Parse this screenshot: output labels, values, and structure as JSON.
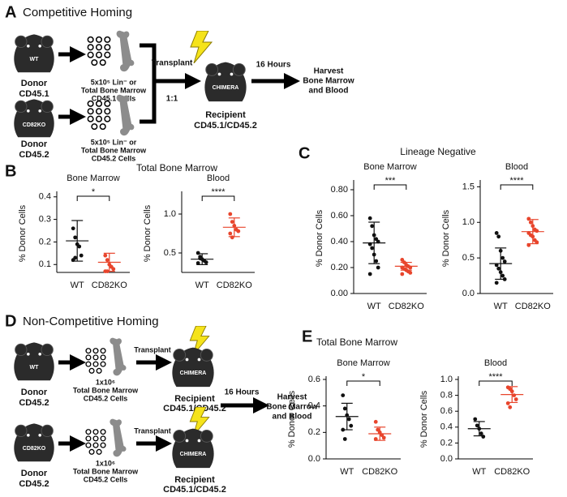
{
  "panel_a": {
    "letter": "A",
    "title": "Competitive Homing",
    "donors": [
      {
        "strain": "WT",
        "label": [
          "Donor",
          "CD45.1"
        ],
        "cells": [
          "5x10⁵ Lin⁻ or",
          "Total Bone Marrow",
          "CD45.1 Cells"
        ]
      },
      {
        "strain": "CD82KO",
        "label": [
          "Donor",
          "CD45.2"
        ],
        "cells": [
          "5x10⁵ Lin⁻ or",
          "Total Bone Marrow",
          "CD45.2 Cells"
        ]
      }
    ],
    "transplant": "Transplant",
    "ratio": "1:1",
    "recipient_mouse": "CHIMERA",
    "recipient": [
      "Recipient",
      "CD45.1/CD45.2"
    ],
    "time": "16 Hours",
    "harvest": [
      "Harvest",
      "Bone Marrow",
      "and Blood"
    ]
  },
  "panel_b": {
    "letter": "B",
    "title": "Total Bone Marrow"
  },
  "panel_c": {
    "letter": "C",
    "title": "Lineage Negative"
  },
  "panel_d": {
    "letter": "D",
    "title": "Non-Competitive Homing",
    "donors": [
      {
        "strain": "WT",
        "label": [
          "Donor",
          "CD45.2"
        ],
        "cells": [
          "1x10⁶",
          "Total Bone Marrow",
          "CD45.2 Cells"
        ],
        "transplant": "Transplant",
        "recipient_mouse": "CHIMERA",
        "recipient": [
          "Recipient",
          "CD45.1/CD45.2"
        ]
      },
      {
        "strain": "CD82KO",
        "label": [
          "Donor",
          "CD45.2"
        ],
        "cells": [
          "1x10⁶",
          "Total Bone Marrow",
          "CD45.2 Cells"
        ],
        "transplant": "Transplant",
        "recipient_mouse": "CHIMERA",
        "recipient": [
          "Recipient",
          "CD45.1/CD45.2"
        ]
      }
    ],
    "time": "16 Hours",
    "harvest": [
      "Harvest",
      "Bone Marrow",
      "and Blood"
    ]
  },
  "panel_e": {
    "letter": "E",
    "title": "Total Bone Marrow"
  },
  "chart_data": [
    {
      "type": "dot",
      "title": "Bone Marrow",
      "ylabel": "% Donor Cells",
      "categories": [
        "WT",
        "CD82KO"
      ],
      "colors": [
        "#111111",
        "#e8452c"
      ],
      "values": [
        [
          0.26,
          0.22,
          0.19,
          0.18,
          0.14,
          0.12,
          0.13
        ],
        [
          0.14,
          0.12,
          0.1,
          0.09,
          0.08,
          0.07,
          0.07
        ]
      ],
      "means": [
        0.205,
        0.11
      ],
      "sds": [
        0.09,
        0.04
      ],
      "significance": "*",
      "ylim": [
        0.065,
        0.41
      ],
      "yticks": [
        0.1,
        0.2,
        0.3,
        0.4
      ]
    },
    {
      "type": "dot",
      "title": "Blood",
      "ylabel": "% Donor Cells",
      "categories": [
        "WT",
        "CD82KO"
      ],
      "colors": [
        "#111111",
        "#e8452c"
      ],
      "values": [
        [
          0.5,
          0.45,
          0.42,
          0.4,
          0.38,
          0.37,
          0.43
        ],
        [
          1.0,
          0.9,
          0.85,
          0.8,
          0.78,
          0.75,
          0.7
        ]
      ],
      "means": [
        0.42,
        0.83
      ],
      "sds": [
        0.07,
        0.12
      ],
      "significance": "****",
      "ylim": [
        0.25,
        1.25
      ],
      "yticks": [
        0.5,
        {
          "value": 1,
          "label": "1.0"
        }
      ]
    },
    {
      "type": "dot",
      "title": "Bone Marrow",
      "ylabel": "% Donor Cells",
      "categories": [
        "WT",
        "CD82KO"
      ],
      "colors": [
        "#111111",
        "#e8452c"
      ],
      "values": [
        [
          0.58,
          0.52,
          0.45,
          0.42,
          0.4,
          0.38,
          0.35,
          0.3,
          0.25,
          0.2,
          0.15
        ],
        [
          0.26,
          0.24,
          0.22,
          0.21,
          0.2,
          0.2,
          0.19,
          0.18,
          0.17,
          0.16,
          0.15
        ]
      ],
      "means": [
        0.39,
        0.21
      ],
      "sds": [
        0.16,
        0.03
      ],
      "significance": "***",
      "ylim": [
        0,
        0.85
      ],
      "yticks": [
        {
          "value": 0,
          "label": "0.00"
        },
        {
          "value": 0.2,
          "label": "0.20"
        },
        {
          "value": 0.4,
          "label": "0.40"
        },
        {
          "value": 0.6,
          "label": "0.60"
        },
        {
          "value": 0.8,
          "label": "0.80"
        }
      ]
    },
    {
      "type": "dot",
      "title": "Blood",
      "ylabel": "% Donor Cells",
      "categories": [
        "WT",
        "CD82KO"
      ],
      "colors": [
        "#111111",
        "#e8452c"
      ],
      "values": [
        [
          0.85,
          0.8,
          0.6,
          0.5,
          0.45,
          0.4,
          0.35,
          0.3,
          0.25,
          0.2,
          0.15
        ],
        [
          1.05,
          1.0,
          0.95,
          0.9,
          0.88,
          0.85,
          0.82,
          0.8,
          0.75,
          0.72,
          0.68
        ]
      ],
      "means": [
        0.42,
        0.87
      ],
      "sds": [
        0.22,
        0.17
      ],
      "significance": "****",
      "ylim": [
        0,
        1.55
      ],
      "yticks": [
        {
          "value": 0,
          "label": "0.0"
        },
        0.5,
        {
          "value": 1,
          "label": "1.0"
        },
        1.5
      ]
    },
    {
      "type": "dot",
      "title": "Bone Marrow",
      "ylabel": "% Donor Cells",
      "categories": [
        "WT",
        "CD82KO"
      ],
      "colors": [
        "#111111",
        "#e8452c"
      ],
      "values": [
        [
          0.48,
          0.38,
          0.33,
          0.3,
          0.25,
          0.22,
          0.15
        ],
        [
          0.28,
          0.22,
          0.2,
          0.18,
          0.16,
          0.15
        ]
      ],
      "means": [
        0.32,
        0.19
      ],
      "sds": [
        0.1,
        0.05
      ],
      "significance": "*",
      "ylim": [
        0,
        0.6
      ],
      "yticks": [
        {
          "value": 0,
          "label": "0.0"
        },
        0.2,
        0.4,
        0.6
      ]
    },
    {
      "type": "dot",
      "title": "Blood",
      "ylabel": "% Donor Cells",
      "categories": [
        "WT",
        "CD82KO"
      ],
      "colors": [
        "#111111",
        "#e8452c"
      ],
      "values": [
        [
          0.5,
          0.42,
          0.38,
          0.32,
          0.28
        ],
        [
          0.9,
          0.88,
          0.85,
          0.8,
          0.75,
          0.7,
          0.65
        ]
      ],
      "means": [
        0.38,
        0.81
      ],
      "sds": [
        0.09,
        0.1
      ],
      "significance": "****",
      "ylim": [
        0,
        1
      ],
      "yticks": [
        {
          "value": 0,
          "label": "0.0"
        },
        0.2,
        0.4,
        0.6,
        0.8,
        {
          "value": 1,
          "label": "1.0"
        }
      ]
    }
  ]
}
